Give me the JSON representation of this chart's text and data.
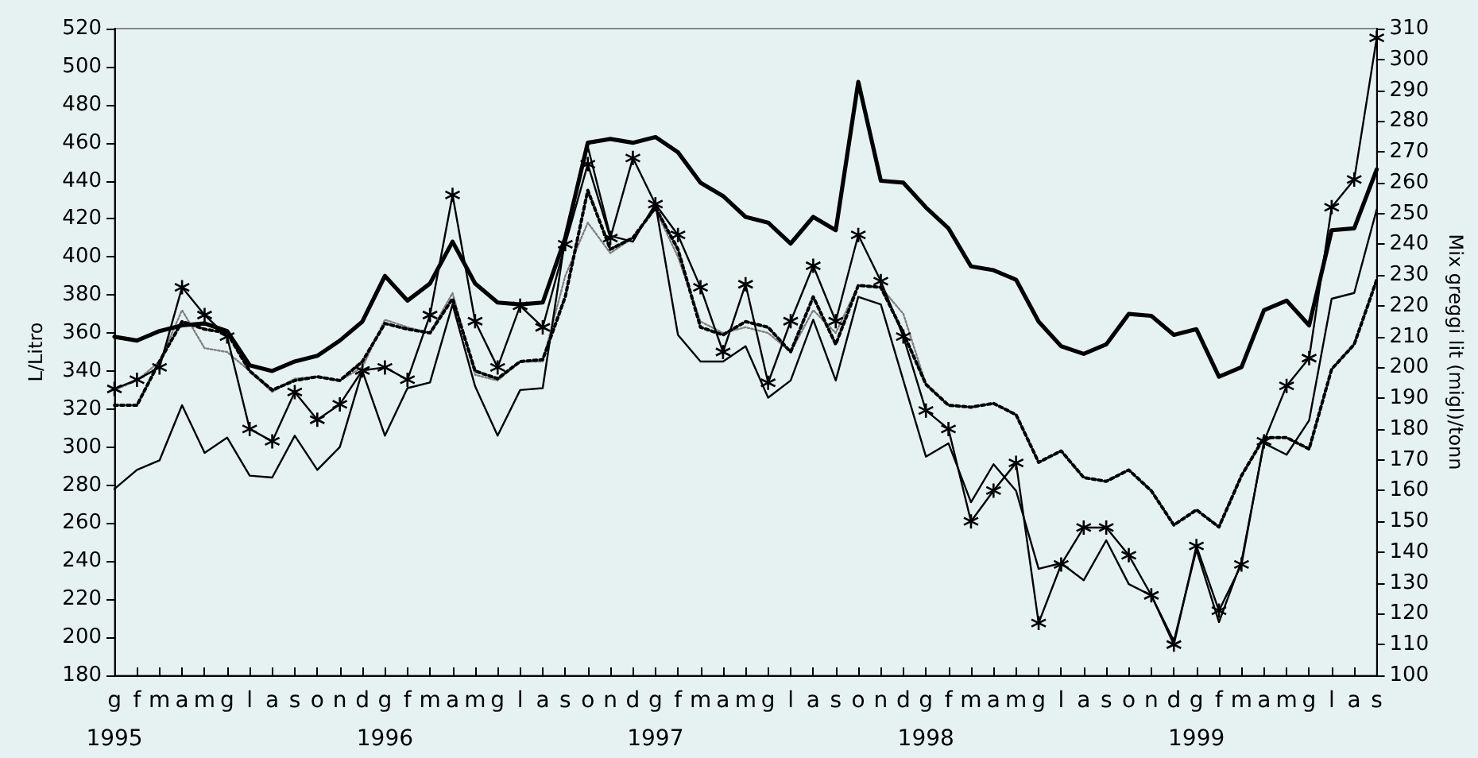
{
  "chart_data": {
    "type": "line",
    "xlabel": null,
    "ylabel": "L/Litro",
    "y2label": "Mix greggi lit (migl)/tonn",
    "categories": [
      "g\n1995",
      "f",
      "m",
      "a",
      "m",
      "g",
      "l",
      "a",
      "s",
      "o",
      "n",
      "d",
      "g\n1996",
      "f",
      "m",
      "a",
      "m",
      "g",
      "l",
      "a",
      "s",
      "o",
      "n",
      "d",
      "g\n1997",
      "f",
      "m",
      "a",
      "m",
      "g",
      "l",
      "a",
      "s",
      "o",
      "n",
      "d",
      "g\n1998",
      "f",
      "m",
      "a",
      "m",
      "g",
      "l",
      "a",
      "s",
      "o",
      "n",
      "d",
      "g\n1999",
      "f",
      "m",
      "a",
      "m",
      "g",
      "l",
      "a",
      "s"
    ],
    "series": [
      {
        "color": "#000000",
        "line_style": "solid",
        "marker": "none",
        "values": [
          358,
          356,
          361,
          364,
          365,
          361,
          343,
          340,
          345,
          348,
          356,
          366,
          390,
          377,
          386,
          408,
          386,
          376,
          375,
          376,
          410,
          460,
          462,
          460,
          463,
          455,
          439,
          432,
          421,
          418,
          407,
          421,
          414,
          492,
          440,
          439,
          426,
          415,
          395,
          393,
          388,
          366,
          353,
          349,
          354,
          370,
          369,
          359,
          362,
          337,
          342,
          372,
          377,
          364,
          414,
          415,
          446
        ]
      },
      {
        "color": "#000000",
        "line_style": "solid",
        "marker": "none",
        "values": [
          278,
          288,
          293,
          322,
          297,
          305,
          285,
          284,
          306,
          288,
          300,
          340,
          306,
          331,
          334,
          375,
          332,
          306,
          330,
          331,
          410,
          458,
          411,
          408,
          428,
          359,
          345,
          345,
          353,
          326,
          335,
          367,
          335,
          379,
          375,
          335,
          295,
          302,
          271,
          291,
          277,
          236,
          239,
          230,
          251,
          228,
          222,
          198,
          246,
          208,
          240,
          302,
          296,
          314,
          378,
          381,
          425
        ]
      },
      {
        "color": "#000000",
        "line_style": "solid",
        "marker": "cross",
        "axis": "y2",
        "values": [
          193,
          196,
          200,
          226,
          217,
          210,
          180,
          176,
          192,
          183,
          188,
          199,
          200,
          196,
          217,
          256,
          215,
          200,
          220,
          213,
          240,
          266,
          242,
          268,
          253,
          243,
          226,
          205,
          227,
          195,
          215,
          233,
          215,
          243,
          228,
          210,
          186,
          180,
          150,
          160,
          169,
          117,
          136,
          148,
          148,
          139,
          126,
          110,
          142,
          121,
          136,
          176,
          194,
          203,
          252,
          261,
          307
        ]
      },
      {
        "color": "#000000",
        "line_style": "dotted",
        "marker": "none",
        "values": [
          322,
          322,
          345,
          366,
          362,
          360,
          340,
          330,
          335,
          337,
          335,
          345,
          365,
          362,
          360,
          378,
          340,
          336,
          345,
          346,
          379,
          435,
          404,
          410,
          426,
          404,
          363,
          359,
          366,
          363,
          350,
          379,
          354,
          385,
          384,
          360,
          333,
          322,
          321,
          323,
          317,
          292,
          298,
          284,
          282,
          288,
          277,
          259,
          267,
          258,
          285,
          305,
          305,
          299,
          341,
          354,
          388
        ]
      },
      {
        "color": "#808080",
        "line_style": "dotted",
        "marker": "none",
        "values": [
          330,
          335,
          345,
          372,
          352,
          350,
          340,
          329,
          336,
          337,
          335,
          342,
          367,
          363,
          360,
          381,
          338,
          335,
          345,
          345,
          390,
          418,
          402,
          410,
          425,
          400,
          366,
          360,
          363,
          360,
          350,
          372,
          360,
          385,
          384,
          370,
          333,
          322,
          321,
          323,
          317,
          292,
          298,
          284,
          282,
          288,
          277,
          259,
          267,
          258,
          285,
          305,
          305,
          299,
          341,
          354,
          388
        ]
      }
    ],
    "ylim": [
      180,
      520
    ],
    "yticks": [
      180,
      200,
      220,
      240,
      260,
      280,
      300,
      320,
      340,
      360,
      380,
      400,
      420,
      440,
      460,
      480,
      500,
      520
    ],
    "y2lim": [
      100,
      310
    ],
    "y2ticks": [
      100,
      110,
      120,
      130,
      140,
      150,
      160,
      170,
      180,
      190,
      200,
      210,
      220,
      230,
      240,
      250,
      260,
      270,
      280,
      290,
      300,
      310
    ],
    "grid": false,
    "legend": false
  }
}
